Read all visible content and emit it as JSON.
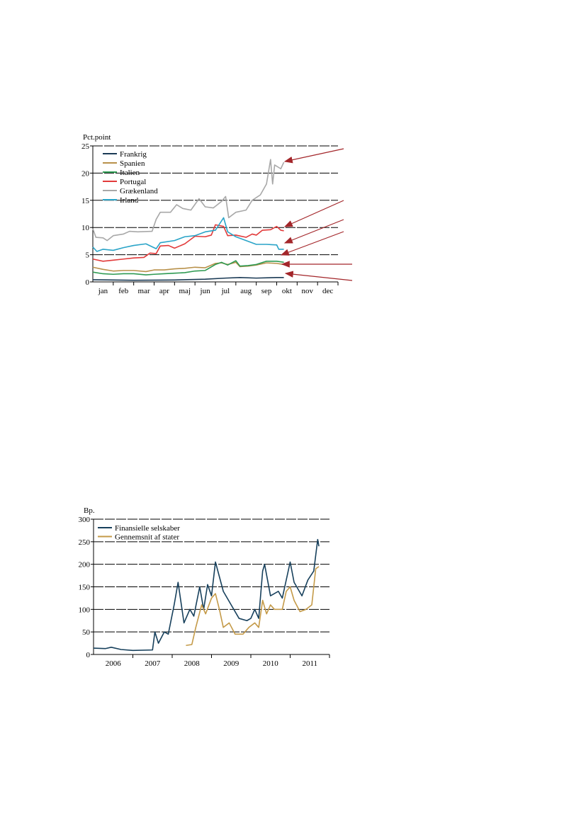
{
  "chart_data": [
    {
      "type": "line",
      "ylabel": "Pct.point",
      "ylim": [
        0,
        25
      ],
      "yticks": [
        0,
        5,
        10,
        15,
        20,
        25
      ],
      "categories": [
        "jan",
        "feb",
        "mar",
        "apr",
        "maj",
        "jun",
        "jul",
        "aug",
        "sep",
        "okt",
        "nov",
        "dec"
      ],
      "x_unit": "months since start of year",
      "series": [
        {
          "name": "Frankrig",
          "color": "#1a3a55",
          "points": [
            [
              0,
              0.4
            ],
            [
              2,
              0.3
            ],
            [
              4,
              0.35
            ],
            [
              5.5,
              0.5
            ],
            [
              6.5,
              0.7
            ],
            [
              7.2,
              0.8
            ],
            [
              8,
              0.7
            ],
            [
              9,
              0.8
            ],
            [
              9.35,
              0.8
            ]
          ]
        },
        {
          "name": "Spanien",
          "color": "#b8914a",
          "points": [
            [
              0,
              2.7
            ],
            [
              0.5,
              2.3
            ],
            [
              1,
              2
            ],
            [
              1.5,
              2.1
            ],
            [
              2,
              2.1
            ],
            [
              2.6,
              1.9
            ],
            [
              3,
              2.2
            ],
            [
              3.5,
              2.2
            ],
            [
              4,
              2.4
            ],
            [
              4.5,
              2.5
            ],
            [
              5,
              2.7
            ],
            [
              5.5,
              2.6
            ],
            [
              6,
              3.4
            ],
            [
              6.3,
              3.5
            ],
            [
              6.6,
              3.2
            ],
            [
              7,
              3.6
            ],
            [
              7.2,
              2.8
            ],
            [
              7.6,
              2.9
            ],
            [
              8,
              3.1
            ],
            [
              8.5,
              3.5
            ],
            [
              9,
              3.4
            ],
            [
              9.35,
              3.2
            ]
          ]
        },
        {
          "name": "Italien",
          "color": "#2e9a52",
          "points": [
            [
              0,
              1.8
            ],
            [
              0.5,
              1.5
            ],
            [
              1,
              1.4
            ],
            [
              1.5,
              1.5
            ],
            [
              2,
              1.5
            ],
            [
              2.6,
              1.3
            ],
            [
              3,
              1.4
            ],
            [
              3.5,
              1.5
            ],
            [
              4,
              1.6
            ],
            [
              4.5,
              1.7
            ],
            [
              5,
              2
            ],
            [
              5.5,
              2.1
            ],
            [
              6,
              3.2
            ],
            [
              6.3,
              3.6
            ],
            [
              6.6,
              3.1
            ],
            [
              7,
              3.9
            ],
            [
              7.2,
              2.9
            ],
            [
              7.6,
              3
            ],
            [
              8,
              3.2
            ],
            [
              8.5,
              3.8
            ],
            [
              9,
              3.8
            ],
            [
              9.35,
              3.6
            ]
          ]
        },
        {
          "name": "Portugal",
          "color": "#e23a3a",
          "points": [
            [
              0,
              4.2
            ],
            [
              0.5,
              3.8
            ],
            [
              1,
              4
            ],
            [
              1.5,
              4.2
            ],
            [
              2,
              4.4
            ],
            [
              2.5,
              4.5
            ],
            [
              2.8,
              5.3
            ],
            [
              3.1,
              5.2
            ],
            [
              3.3,
              6.6
            ],
            [
              3.7,
              6.7
            ],
            [
              4,
              6.2
            ],
            [
              4.5,
              7
            ],
            [
              5,
              8.4
            ],
            [
              5.5,
              8.3
            ],
            [
              5.8,
              8.6
            ],
            [
              6,
              10.5
            ],
            [
              6.4,
              10.2
            ],
            [
              6.6,
              8.5
            ],
            [
              7,
              8.6
            ],
            [
              7.5,
              8.2
            ],
            [
              7.8,
              8.8
            ],
            [
              8,
              8.6
            ],
            [
              8.3,
              9.5
            ],
            [
              8.7,
              9.6
            ],
            [
              9,
              10.2
            ],
            [
              9.2,
              9.5
            ],
            [
              9.35,
              9.4
            ]
          ]
        },
        {
          "name": "Grækenland",
          "color": "#a8a8a8",
          "points": [
            [
              0,
              9.8
            ],
            [
              0.15,
              8.2
            ],
            [
              0.5,
              8.1
            ],
            [
              0.7,
              7.6
            ],
            [
              1,
              8.5
            ],
            [
              1.5,
              8.8
            ],
            [
              1.8,
              9.3
            ],
            [
              2.2,
              9.2
            ],
            [
              2.9,
              9.3
            ],
            [
              3.1,
              11.5
            ],
            [
              3.3,
              12.8
            ],
            [
              3.8,
              12.8
            ],
            [
              4.1,
              14.2
            ],
            [
              4.4,
              13.5
            ],
            [
              4.8,
              13.2
            ],
            [
              5.2,
              15.3
            ],
            [
              5.5,
              13.8
            ],
            [
              5.9,
              13.6
            ],
            [
              6.3,
              14.8
            ],
            [
              6.5,
              15.7
            ],
            [
              6.65,
              11.8
            ],
            [
              7,
              12.8
            ],
            [
              7.5,
              13.2
            ],
            [
              7.8,
              15
            ],
            [
              8.2,
              16
            ],
            [
              8.5,
              18
            ],
            [
              8.7,
              22.5
            ],
            [
              8.8,
              18
            ],
            [
              8.9,
              21.5
            ],
            [
              9.2,
              20.8
            ],
            [
              9.35,
              22
            ]
          ]
        },
        {
          "name": "Irland",
          "color": "#2aa4c8",
          "points": [
            [
              0,
              6.4
            ],
            [
              0.2,
              5.6
            ],
            [
              0.5,
              6
            ],
            [
              1,
              5.8
            ],
            [
              1.5,
              6.3
            ],
            [
              2,
              6.7
            ],
            [
              2.6,
              7
            ],
            [
              3.1,
              6.1
            ],
            [
              3.3,
              7.2
            ],
            [
              4,
              7.6
            ],
            [
              4.5,
              8.3
            ],
            [
              5,
              8.5
            ],
            [
              5.5,
              9.2
            ],
            [
              6,
              9.5
            ],
            [
              6.4,
              11.8
            ],
            [
              6.6,
              9.2
            ],
            [
              7,
              8.3
            ],
            [
              7.5,
              7.6
            ],
            [
              8,
              6.9
            ],
            [
              8.5,
              6.9
            ],
            [
              9,
              6.8
            ],
            [
              9.1,
              6
            ],
            [
              9.35,
              6
            ]
          ]
        }
      ],
      "legend": "top-left"
    },
    {
      "type": "line",
      "ylabel": "Bp.",
      "ylim": [
        0,
        300
      ],
      "yticks": [
        0,
        50,
        100,
        150,
        200,
        250,
        300
      ],
      "categories": [
        "2006",
        "2007",
        "2008",
        "2009",
        "2010",
        "2011"
      ],
      "xlim": [
        2006,
        2012
      ],
      "series": [
        {
          "name": "Finansielle selskaber",
          "color": "#17405c",
          "points": [
            [
              2006,
              14
            ],
            [
              2006.3,
              13
            ],
            [
              2006.45,
              16
            ],
            [
              2006.7,
              11
            ],
            [
              2007,
              9
            ],
            [
              2007.5,
              10
            ],
            [
              2007.56,
              50
            ],
            [
              2007.65,
              25
            ],
            [
              2007.8,
              50
            ],
            [
              2007.9,
              45
            ],
            [
              2008.05,
              110
            ],
            [
              2008.15,
              160
            ],
            [
              2008.3,
              70
            ],
            [
              2008.45,
              100
            ],
            [
              2008.55,
              85
            ],
            [
              2008.7,
              150
            ],
            [
              2008.8,
              100
            ],
            [
              2008.9,
              155
            ],
            [
              2009,
              130
            ],
            [
              2009.1,
              205
            ],
            [
              2009.3,
              140
            ],
            [
              2009.5,
              110
            ],
            [
              2009.7,
              80
            ],
            [
              2009.9,
              75
            ],
            [
              2010,
              80
            ],
            [
              2010.1,
              100
            ],
            [
              2010.2,
              80
            ],
            [
              2010.3,
              185
            ],
            [
              2010.35,
              200
            ],
            [
              2010.5,
              130
            ],
            [
              2010.7,
              140
            ],
            [
              2010.8,
              125
            ],
            [
              2011,
              205
            ],
            [
              2011.1,
              160
            ],
            [
              2011.3,
              130
            ],
            [
              2011.45,
              165
            ],
            [
              2011.6,
              185
            ],
            [
              2011.7,
              255
            ],
            [
              2011.73,
              240
            ]
          ]
        },
        {
          "name": "Gennemsnit af stater",
          "color": "#c49a48",
          "points": [
            [
              2008.35,
              20
            ],
            [
              2008.5,
              22
            ],
            [
              2008.6,
              60
            ],
            [
              2008.75,
              110
            ],
            [
              2008.85,
              90
            ],
            [
              2009,
              125
            ],
            [
              2009.1,
              135
            ],
            [
              2009.2,
              100
            ],
            [
              2009.3,
              60
            ],
            [
              2009.45,
              70
            ],
            [
              2009.6,
              45
            ],
            [
              2009.8,
              45
            ],
            [
              2009.95,
              60
            ],
            [
              2010.1,
              70
            ],
            [
              2010.2,
              60
            ],
            [
              2010.3,
              120
            ],
            [
              2010.4,
              90
            ],
            [
              2010.5,
              110
            ],
            [
              2010.6,
              100
            ],
            [
              2010.8,
              100
            ],
            [
              2010.9,
              140
            ],
            [
              2011,
              150
            ],
            [
              2011.1,
              120
            ],
            [
              2011.25,
              95
            ],
            [
              2011.4,
              100
            ],
            [
              2011.55,
              110
            ],
            [
              2011.65,
              190
            ],
            [
              2011.73,
              195
            ]
          ]
        }
      ],
      "legend": "top-left"
    }
  ],
  "colors": {
    "arrow": "#a3262a"
  }
}
